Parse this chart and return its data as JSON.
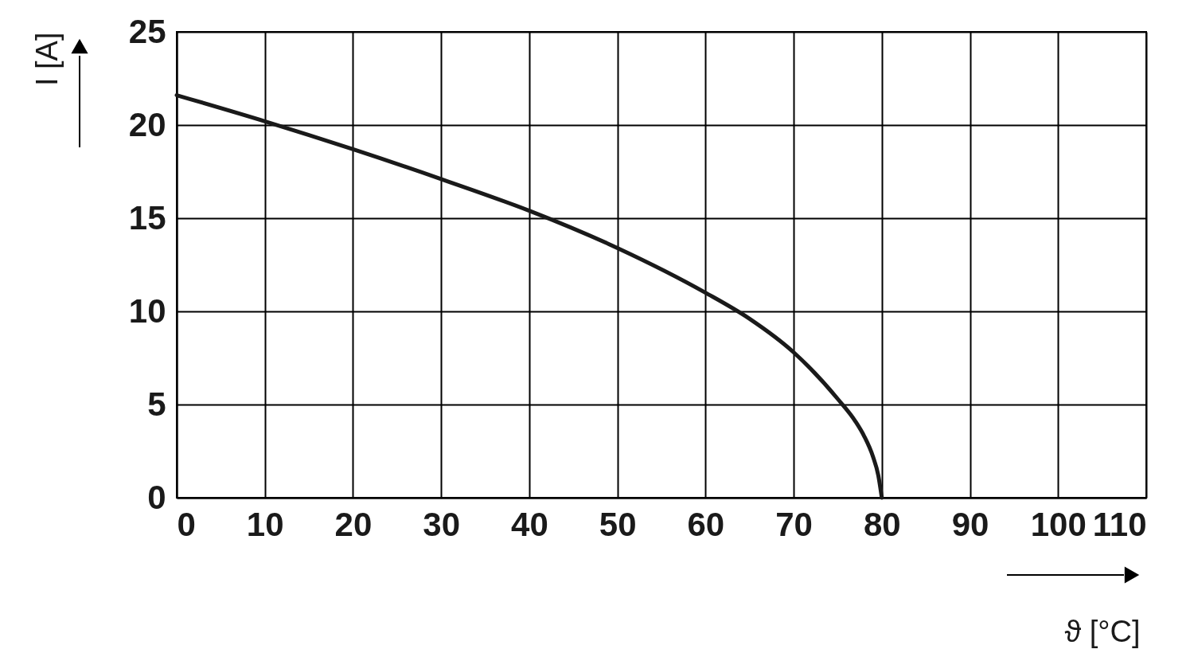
{
  "chart_data": {
    "type": "line",
    "xlabel": "ϑ [°C]",
    "ylabel": "I [A]",
    "x": [
      0,
      10,
      20,
      30,
      40,
      50,
      60,
      65,
      70,
      75,
      77,
      78,
      79,
      79.6,
      80
    ],
    "series": [
      {
        "color": "#1a1a1a",
        "values": [
          21.6,
          20.2,
          18.7,
          17.1,
          15.4,
          13.4,
          11.0,
          9.6,
          7.8,
          5.3,
          4.1,
          3.3,
          2.2,
          1.2,
          0
        ]
      }
    ],
    "xlim": [
      0,
      110
    ],
    "xticks": [
      0,
      10,
      20,
      30,
      40,
      50,
      60,
      70,
      80,
      90,
      100,
      110
    ],
    "ylim": [
      0,
      25
    ],
    "yticks": [
      0,
      5,
      10,
      15,
      20,
      25
    ],
    "grid": true
  }
}
